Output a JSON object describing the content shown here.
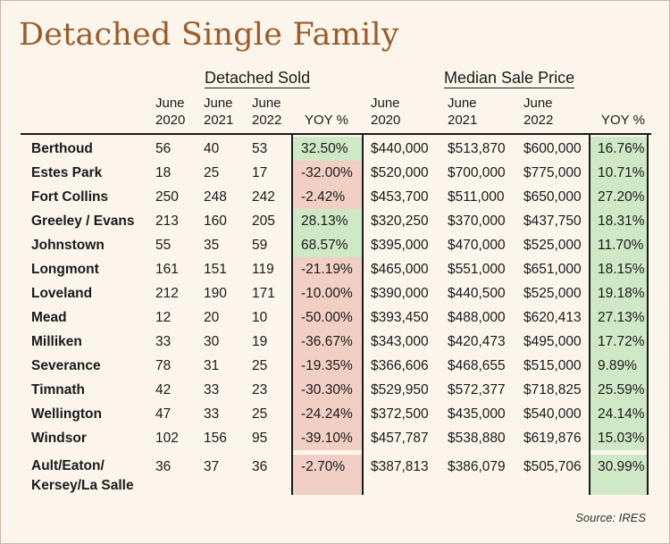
{
  "title": "Detached Single Family",
  "groups": {
    "sold": "Detached Sold",
    "price": "Median Sale Price"
  },
  "columns": {
    "sold": [
      {
        "l1": "June",
        "l2": "2020"
      },
      {
        "l1": "June",
        "l2": "2021"
      },
      {
        "l1": "June",
        "l2": "2022"
      }
    ],
    "sold_yoy": "YOY %",
    "price": [
      {
        "l1": "June",
        "l2": "2020"
      },
      {
        "l1": "June",
        "l2": "2021"
      },
      {
        "l1": "June",
        "l2": "2022"
      }
    ],
    "price_yoy": "YOY %"
  },
  "colors": {
    "positive": "#cfe8c6",
    "negative": "#f1cfc4",
    "title": "#9b5c2a"
  },
  "rows": [
    {
      "city": "Berthoud",
      "s2020": "56",
      "s2021": "40",
      "s2022": "53",
      "syoy": "32.50%",
      "p2020": "$440,000",
      "p2021": "$513,870",
      "p2022": "$600,000",
      "pyoy": "16.76%"
    },
    {
      "city": "Estes Park",
      "s2020": "18",
      "s2021": "25",
      "s2022": "17",
      "syoy": "-32.00%",
      "p2020": "$520,000",
      "p2021": "$700,000",
      "p2022": "$775,000",
      "pyoy": "10.71%"
    },
    {
      "city": "Fort Collins",
      "s2020": "250",
      "s2021": "248",
      "s2022": "242",
      "syoy": "-2.42%",
      "p2020": "$453,700",
      "p2021": "$511,000",
      "p2022": "$650,000",
      "pyoy": "27.20%"
    },
    {
      "city": "Greeley / Evans",
      "s2020": "213",
      "s2021": "160",
      "s2022": "205",
      "syoy": "28.13%",
      "p2020": "$320,250",
      "p2021": "$370,000",
      "p2022": "$437,750",
      "pyoy": "18.31%"
    },
    {
      "city": "Johnstown",
      "s2020": "55",
      "s2021": "35",
      "s2022": "59",
      "syoy": "68.57%",
      "p2020": "$395,000",
      "p2021": "$470,000",
      "p2022": "$525,000",
      "pyoy": "11.70%"
    },
    {
      "city": "Longmont",
      "s2020": "161",
      "s2021": "151",
      "s2022": "119",
      "syoy": "-21.19%",
      "p2020": "$465,000",
      "p2021": "$551,000",
      "p2022": "$651,000",
      "pyoy": "18.15%"
    },
    {
      "city": "Loveland",
      "s2020": "212",
      "s2021": "190",
      "s2022": "171",
      "syoy": "-10.00%",
      "p2020": "$390,000",
      "p2021": "$440,500",
      "p2022": "$525,000",
      "pyoy": "19.18%"
    },
    {
      "city": "Mead",
      "s2020": "12",
      "s2021": "20",
      "s2022": "10",
      "syoy": "-50.00%",
      "p2020": "$393,450",
      "p2021": "$488,000",
      "p2022": "$620,413",
      "pyoy": "27.13%"
    },
    {
      "city": "Milliken",
      "s2020": "33",
      "s2021": "30",
      "s2022": "19",
      "syoy": "-36.67%",
      "p2020": "$343,000",
      "p2021": "$420,473",
      "p2022": "$495,000",
      "pyoy": "17.72%"
    },
    {
      "city": "Severance",
      "s2020": "78",
      "s2021": "31",
      "s2022": "25",
      "syoy": "-19.35%",
      "p2020": "$366,606",
      "p2021": "$468,655",
      "p2022": "$515,000",
      "pyoy": "9.89%"
    },
    {
      "city": "Timnath",
      "s2020": "42",
      "s2021": "33",
      "s2022": "23",
      "syoy": "-30.30%",
      "p2020": "$529,950",
      "p2021": "$572,377",
      "p2022": "$718,825",
      "pyoy": "25.59%"
    },
    {
      "city": "Wellington",
      "s2020": "47",
      "s2021": "33",
      "s2022": "25",
      "syoy": "-24.24%",
      "p2020": "$372,500",
      "p2021": "$435,000",
      "p2022": "$540,000",
      "pyoy": "24.14%"
    },
    {
      "city": "Windsor",
      "s2020": "102",
      "s2021": "156",
      "s2022": "95",
      "syoy": "-39.10%",
      "p2020": "$457,787",
      "p2021": "$538,880",
      "p2022": "$619,876",
      "pyoy": "15.03%"
    },
    {
      "city": "Ault/Eaton/ Kersey/La Salle",
      "s2020": "36",
      "s2021": "37",
      "s2022": "36",
      "syoy": "-2.70%",
      "p2020": "$387,813",
      "p2021": "$386,079",
      "p2022": "$505,706",
      "pyoy": "30.99%"
    }
  ],
  "source": "Source: IRES"
}
